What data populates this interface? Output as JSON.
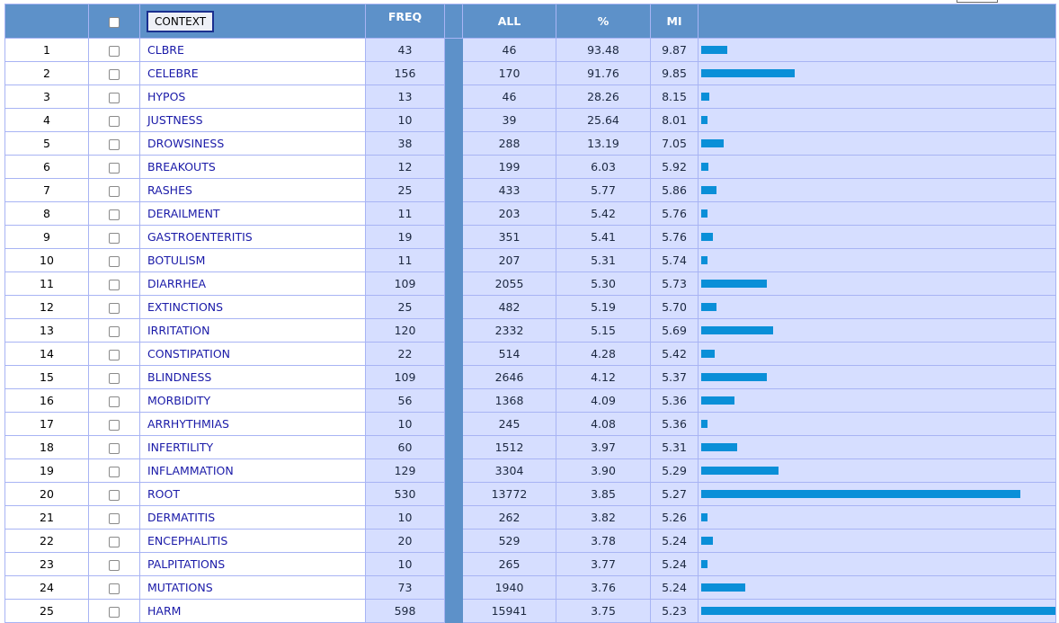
{
  "header": {
    "context_label": "CONTEXT",
    "freq_label": "FREQ",
    "all_label": "ALL",
    "percent_label": "%",
    "mi_label": "MI"
  },
  "max_freq": 598,
  "rows": [
    {
      "n": "1",
      "word": "CLBRE",
      "freq": "43",
      "all": "46",
      "pct": "93.48",
      "mi": "9.87"
    },
    {
      "n": "2",
      "word": "CELEBRE",
      "freq": "156",
      "all": "170",
      "pct": "91.76",
      "mi": "9.85"
    },
    {
      "n": "3",
      "word": "HYPOS",
      "freq": "13",
      "all": "46",
      "pct": "28.26",
      "mi": "8.15"
    },
    {
      "n": "4",
      "word": "JUSTNESS",
      "freq": "10",
      "all": "39",
      "pct": "25.64",
      "mi": "8.01"
    },
    {
      "n": "5",
      "word": "DROWSINESS",
      "freq": "38",
      "all": "288",
      "pct": "13.19",
      "mi": "7.05"
    },
    {
      "n": "6",
      "word": "BREAKOUTS",
      "freq": "12",
      "all": "199",
      "pct": "6.03",
      "mi": "5.92"
    },
    {
      "n": "7",
      "word": "RASHES",
      "freq": "25",
      "all": "433",
      "pct": "5.77",
      "mi": "5.86"
    },
    {
      "n": "8",
      "word": "DERAILMENT",
      "freq": "11",
      "all": "203",
      "pct": "5.42",
      "mi": "5.76"
    },
    {
      "n": "9",
      "word": "GASTROENTERITIS",
      "freq": "19",
      "all": "351",
      "pct": "5.41",
      "mi": "5.76"
    },
    {
      "n": "10",
      "word": "BOTULISM",
      "freq": "11",
      "all": "207",
      "pct": "5.31",
      "mi": "5.74"
    },
    {
      "n": "11",
      "word": "DIARRHEA",
      "freq": "109",
      "all": "2055",
      "pct": "5.30",
      "mi": "5.73"
    },
    {
      "n": "12",
      "word": "EXTINCTIONS",
      "freq": "25",
      "all": "482",
      "pct": "5.19",
      "mi": "5.70"
    },
    {
      "n": "13",
      "word": "IRRITATION",
      "freq": "120",
      "all": "2332",
      "pct": "5.15",
      "mi": "5.69"
    },
    {
      "n": "14",
      "word": "CONSTIPATION",
      "freq": "22",
      "all": "514",
      "pct": "4.28",
      "mi": "5.42"
    },
    {
      "n": "15",
      "word": "BLINDNESS",
      "freq": "109",
      "all": "2646",
      "pct": "4.12",
      "mi": "5.37"
    },
    {
      "n": "16",
      "word": "MORBIDITY",
      "freq": "56",
      "all": "1368",
      "pct": "4.09",
      "mi": "5.36"
    },
    {
      "n": "17",
      "word": "ARRHYTHMIAS",
      "freq": "10",
      "all": "245",
      "pct": "4.08",
      "mi": "5.36"
    },
    {
      "n": "18",
      "word": "INFERTILITY",
      "freq": "60",
      "all": "1512",
      "pct": "3.97",
      "mi": "5.31"
    },
    {
      "n": "19",
      "word": "INFLAMMATION",
      "freq": "129",
      "all": "3304",
      "pct": "3.90",
      "mi": "5.29"
    },
    {
      "n": "20",
      "word": "ROOT",
      "freq": "530",
      "all": "13772",
      "pct": "3.85",
      "mi": "5.27"
    },
    {
      "n": "21",
      "word": "DERMATITIS",
      "freq": "10",
      "all": "262",
      "pct": "3.82",
      "mi": "5.26"
    },
    {
      "n": "22",
      "word": "ENCEPHALITIS",
      "freq": "20",
      "all": "529",
      "pct": "3.78",
      "mi": "5.24"
    },
    {
      "n": "23",
      "word": "PALPITATIONS",
      "freq": "10",
      "all": "265",
      "pct": "3.77",
      "mi": "5.24"
    },
    {
      "n": "24",
      "word": "MUTATIONS",
      "freq": "73",
      "all": "1940",
      "pct": "3.76",
      "mi": "5.24"
    },
    {
      "n": "25",
      "word": "HARM",
      "freq": "598",
      "all": "15941",
      "pct": "3.75",
      "mi": "5.23"
    }
  ],
  "colors": {
    "header_bg": "#5d91c9",
    "stat_bg": "#d6deff",
    "bar": "#0a8fd8",
    "link": "#1a1aa8",
    "border": "#a8b4f4"
  }
}
